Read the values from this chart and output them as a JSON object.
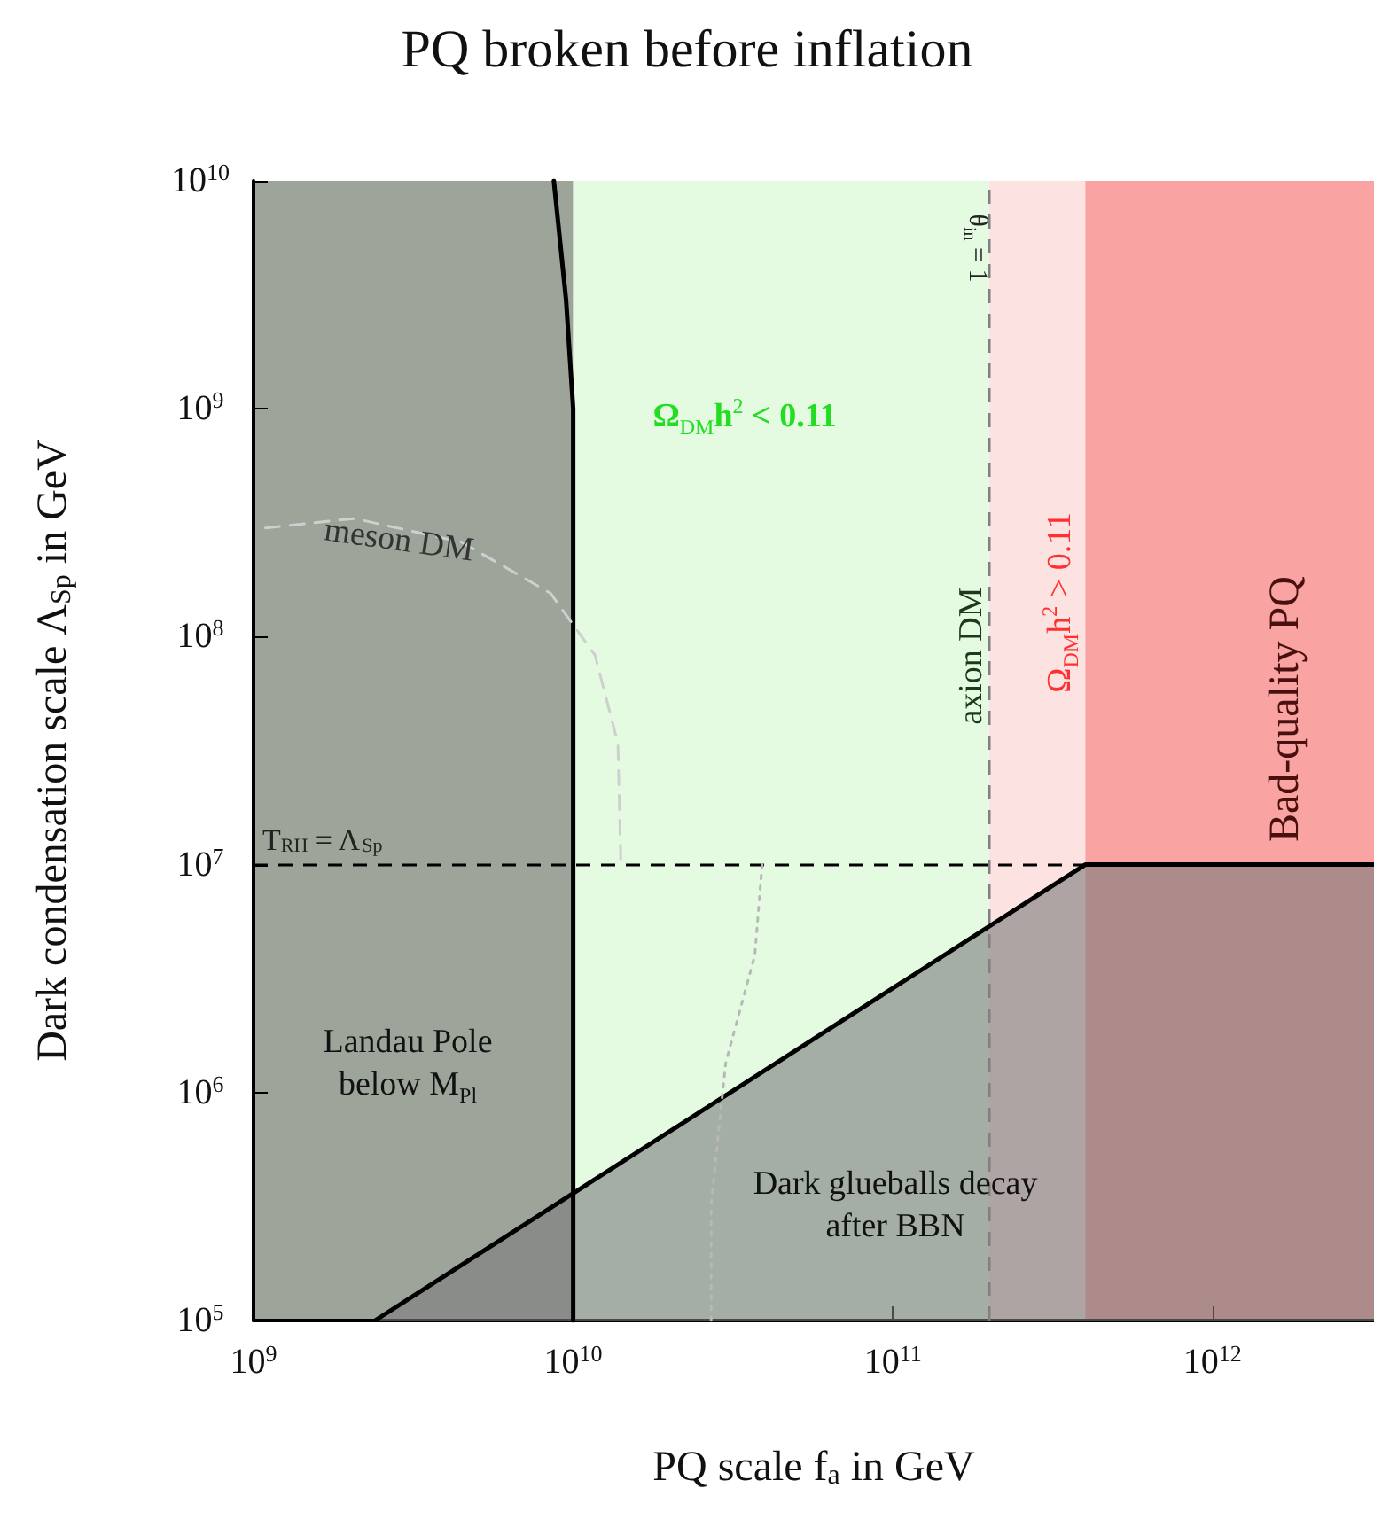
{
  "chart_data": {
    "type": "line",
    "title": "PQ broken before inflation",
    "xlabel": "PQ scale f$_{a}$ in GeV",
    "ylabel": "Dark condensation scale Λ$_{Sp}$ in GeV",
    "log": "xy",
    "grid": false,
    "marker": "none",
    "xlim": [
      1000000000,
      3200000000000
    ],
    "ylim": [
      100000,
      10000000000
    ],
    "xticks": [
      {
        "value": 1000000000,
        "label": "10$^{9}$"
      },
      {
        "value": 10000000000,
        "label": "10$^{10}$"
      },
      {
        "value": 100000000000,
        "label": "10$^{11}$"
      },
      {
        "value": 1000000000000,
        "label": "10$^{12}$"
      }
    ],
    "yticks": [
      {
        "value": 100000,
        "label": "10$^{5}$"
      },
      {
        "value": 1000000,
        "label": "10$^{6}$"
      },
      {
        "value": 10000000,
        "label": "10$^{7}$"
      },
      {
        "value": 100000000,
        "label": "10$^{8}$"
      },
      {
        "value": 1000000000,
        "label": "10$^{9}$"
      },
      {
        "value": 10000000000,
        "label": "10$^{10}$"
      }
    ],
    "bands": [
      {
        "axis": "x",
        "from": 1000000000,
        "to": 10000000000,
        "color": "#9da59b"
      },
      {
        "axis": "x",
        "from": 10000000000,
        "to": 200000000000,
        "color": "#e4fbe2"
      },
      {
        "axis": "x",
        "from": 200000000000,
        "to": 400000000000,
        "color": "#fde2e2"
      },
      {
        "axis": "x",
        "from": 400000000000,
        "to": 3200000000000,
        "color": "#f9a3a3"
      }
    ],
    "ref_lines": [
      {
        "axis": "y",
        "value": 10000000,
        "label": "T$_{RH}$ = Λ$_{Sp}$",
        "color": "#000000",
        "line_style": "dashed"
      },
      {
        "axis": "x",
        "value": 200000000000,
        "color": "#808080",
        "line_style": "dashed"
      }
    ],
    "series": [
      {
        "type": "area",
        "color": "#7c7c7c",
        "x": [
          2400000000,
          400000000000,
          3200000000000
        ],
        "values": [
          100000,
          10000000,
          10000000
        ]
      },
      {
        "type": "line",
        "color": "#000000",
        "line_style": "solid",
        "x": [
          8700000000,
          9500000000,
          10000000000,
          10000000000
        ],
        "values": [
          10000000000,
          3000000000,
          1000000000,
          100000
        ]
      },
      {
        "type": "line",
        "color": "#cfcfcf",
        "line_style": "dashed",
        "x": [
          1090000000,
          2070000000,
          4470000000,
          8500000000,
          11700000000,
          13800000000,
          14100000000
        ],
        "values": [
          300000000,
          330000000,
          260000000,
          155000000,
          83000000,
          34000000,
          10000000
        ]
      },
      {
        "type": "line",
        "color": "#b8b8b8",
        "line_style": "dotted",
        "x": [
          39000000000,
          37000000000,
          30000000000,
          27000000000,
          27000000000
        ],
        "values": [
          10000000,
          4000000,
          1350000,
          320000,
          100000
        ]
      }
    ],
    "annotations": [
      "Ω$_{DM}$h$^{2}$ < 0.11",
      "axion DM",
      "Ω$_{DM}$h$^{2}$ > 0.11",
      "Bad-quality PQ",
      "meson DM",
      "Landau Pole\nbelow M$_{Pl}$",
      "Dark glueballs decay\nafter BBN",
      "θ$_{in}$ = 1"
    ]
  }
}
